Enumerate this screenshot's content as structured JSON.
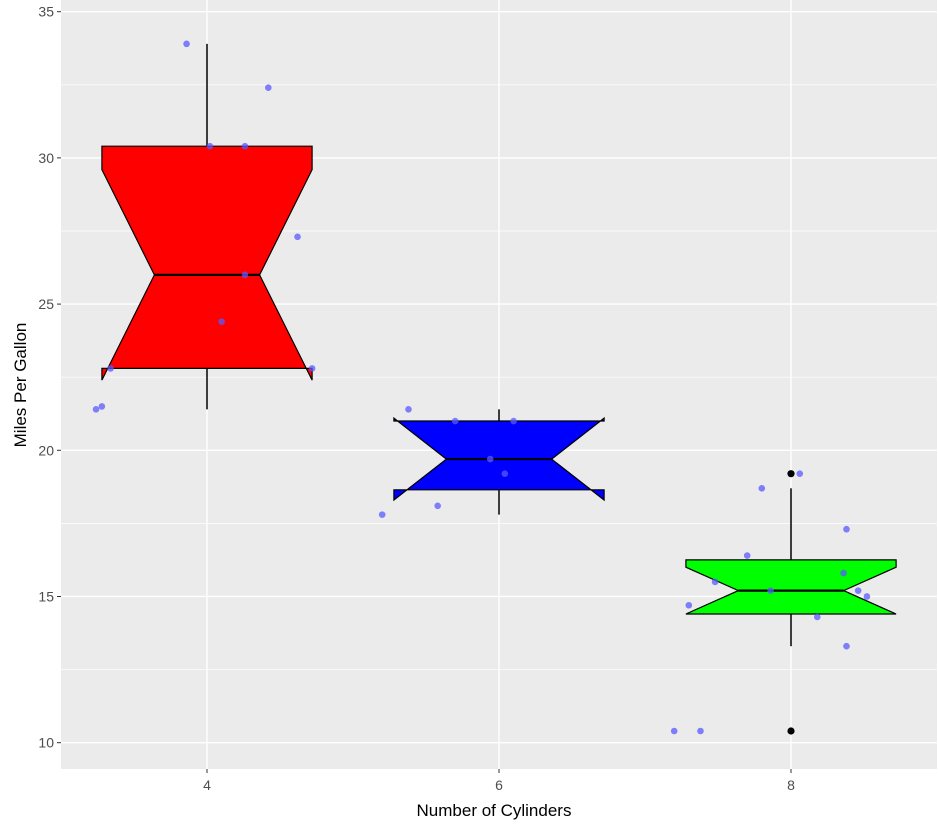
{
  "chart_data": {
    "type": "boxplot",
    "notched": true,
    "xlabel": "Number of Cylinders",
    "ylabel": "Miles Per Gallon",
    "ylim": [
      9.1,
      35.4
    ],
    "yticks": [
      10,
      15,
      20,
      25,
      30,
      35
    ],
    "categories": [
      "4",
      "6",
      "8"
    ],
    "grid": true,
    "background": "#ebebeb",
    "grid_color": "#ffffff",
    "point_color": "#5a5aff",
    "outlier_color": "#000000",
    "boxes": [
      {
        "category": "4",
        "fill": "#ff0000",
        "whisker_low": 21.4,
        "q1": 22.8,
        "median": 26.0,
        "q3": 30.4,
        "whisker_high": 33.9,
        "notch_low": 22.4,
        "notch_high": 29.6,
        "outliers": []
      },
      {
        "category": "6",
        "fill": "#0000ff",
        "whisker_low": 17.8,
        "q1": 18.65,
        "median": 19.7,
        "q3": 21.0,
        "whisker_high": 21.4,
        "notch_low": 18.3,
        "notch_high": 21.1,
        "outliers": []
      },
      {
        "category": "8",
        "fill": "#00ff00",
        "whisker_low": 13.3,
        "q1": 14.4,
        "median": 15.2,
        "q3": 16.25,
        "whisker_high": 18.7,
        "notch_low": 14.4,
        "notch_high": 16.0,
        "outliers": [
          19.2,
          10.4
        ]
      }
    ],
    "jitter_points": [
      {
        "group": 0,
        "dx": -0.38,
        "y": 21.4
      },
      {
        "group": 0,
        "dx": -0.36,
        "y": 21.5
      },
      {
        "group": 0,
        "dx": -0.33,
        "y": 22.8
      },
      {
        "group": 0,
        "dx": -0.07,
        "y": 33.9
      },
      {
        "group": 0,
        "dx": 0.01,
        "y": 30.4
      },
      {
        "group": 0,
        "dx": 0.13,
        "y": 30.4
      },
      {
        "group": 0,
        "dx": 0.21,
        "y": 32.4
      },
      {
        "group": 0,
        "dx": 0.31,
        "y": 27.3
      },
      {
        "group": 0,
        "dx": 0.13,
        "y": 26.0
      },
      {
        "group": 0,
        "dx": 0.05,
        "y": 24.4
      },
      {
        "group": 0,
        "dx": 0.36,
        "y": 22.8
      },
      {
        "group": 1,
        "dx": -0.4,
        "y": 17.8
      },
      {
        "group": 1,
        "dx": -0.31,
        "y": 21.4
      },
      {
        "group": 1,
        "dx": -0.21,
        "y": 18.1
      },
      {
        "group": 1,
        "dx": -0.15,
        "y": 21.0
      },
      {
        "group": 1,
        "dx": 0.05,
        "y": 21.0
      },
      {
        "group": 1,
        "dx": -0.03,
        "y": 19.7
      },
      {
        "group": 1,
        "dx": 0.02,
        "y": 19.2
      },
      {
        "group": 2,
        "dx": -0.4,
        "y": 10.4
      },
      {
        "group": 2,
        "dx": -0.31,
        "y": 10.4
      },
      {
        "group": 2,
        "dx": -0.35,
        "y": 14.7
      },
      {
        "group": 2,
        "dx": -0.26,
        "y": 15.5
      },
      {
        "group": 2,
        "dx": -0.15,
        "y": 16.4
      },
      {
        "group": 2,
        "dx": -0.1,
        "y": 18.7
      },
      {
        "group": 2,
        "dx": -0.07,
        "y": 15.2
      },
      {
        "group": 2,
        "dx": 0.03,
        "y": 19.2
      },
      {
        "group": 2,
        "dx": 0.09,
        "y": 14.3
      },
      {
        "group": 2,
        "dx": 0.18,
        "y": 15.8
      },
      {
        "group": 2,
        "dx": 0.19,
        "y": 17.3
      },
      {
        "group": 2,
        "dx": 0.19,
        "y": 13.3
      },
      {
        "group": 2,
        "dx": 0.23,
        "y": 15.2
      },
      {
        "group": 2,
        "dx": 0.26,
        "y": 15.0
      }
    ]
  }
}
